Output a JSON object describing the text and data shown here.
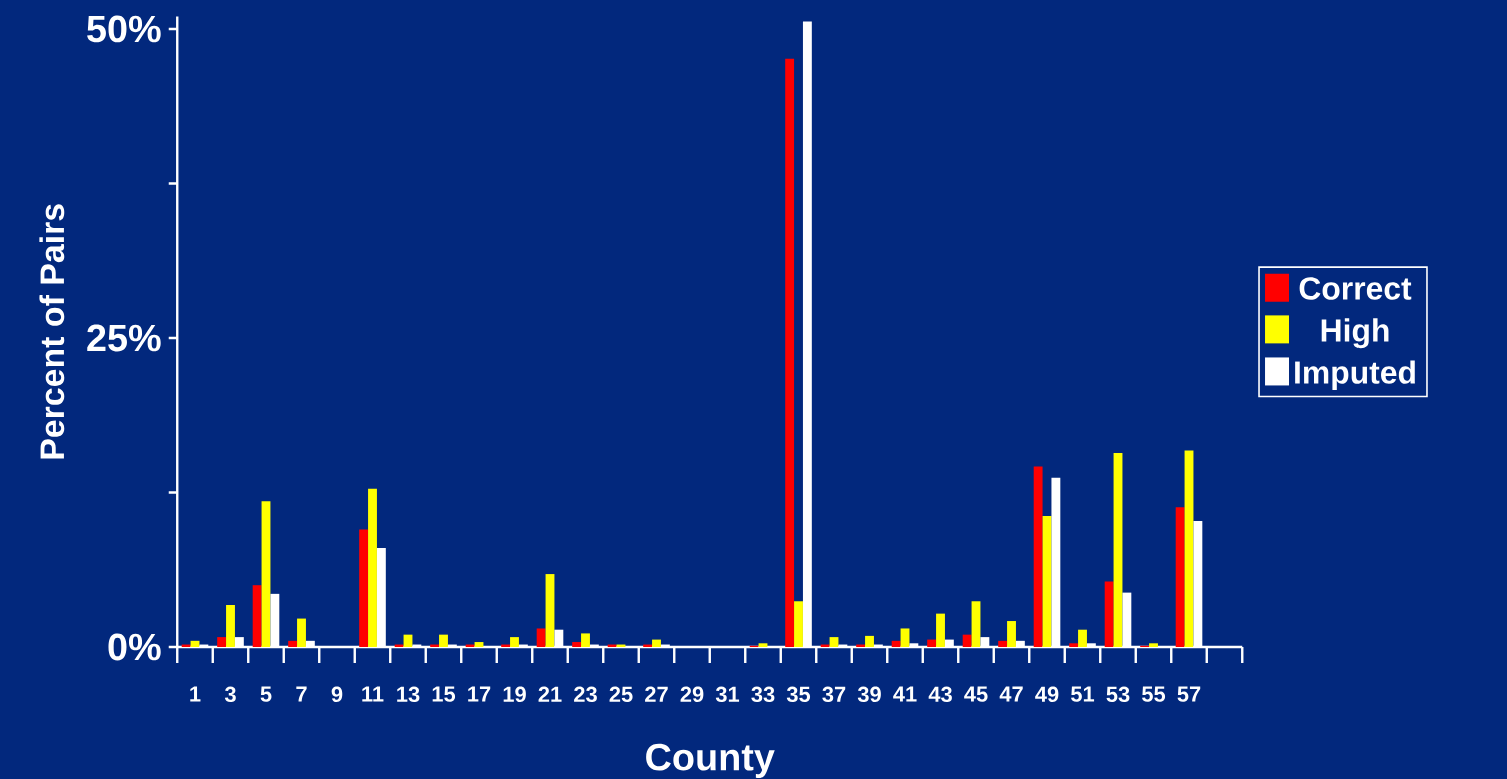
{
  "chart_data": {
    "type": "bar",
    "xlabel": "County",
    "ylabel": "Percent of Pairs",
    "categories": [
      "1",
      "3",
      "5",
      "7",
      "9",
      "11",
      "13",
      "15",
      "17",
      "19",
      "21",
      "23",
      "25",
      "27",
      "29",
      "31",
      "33",
      "35",
      "37",
      "39",
      "41",
      "43",
      "45",
      "47",
      "49",
      "51",
      "53",
      "55",
      "57",
      null
    ],
    "series": [
      {
        "name": "Correct",
        "color": "#ff0000",
        "values": [
          0.2,
          0.8,
          5.0,
          0.5,
          0,
          9.5,
          0.2,
          0.2,
          0.2,
          0.2,
          1.5,
          0.4,
          0.2,
          0.2,
          0,
          0,
          0.1,
          47.6,
          0.2,
          0.2,
          0.5,
          0.6,
          1.0,
          0.5,
          14.6,
          0.3,
          5.3,
          0.1,
          11.3,
          0
        ]
      },
      {
        "name": "High",
        "color": "#ffff00",
        "values": [
          0.5,
          3.4,
          11.8,
          2.3,
          0,
          12.8,
          1.0,
          1.0,
          0.4,
          0.8,
          5.9,
          1.1,
          0.2,
          0.6,
          0,
          0,
          0.3,
          3.7,
          0.8,
          0.9,
          1.5,
          2.7,
          3.7,
          2.1,
          10.6,
          1.4,
          15.7,
          0.3,
          15.9,
          0
        ]
      },
      {
        "name": "Imputed",
        "color": "#ffffff",
        "values": [
          0.2,
          0.8,
          4.3,
          0.5,
          0,
          8.0,
          0.2,
          0.2,
          0,
          0.2,
          1.4,
          0.2,
          0,
          0.2,
          0,
          0,
          0,
          50.6,
          0.2,
          0.2,
          0.3,
          0.6,
          0.8,
          0.5,
          13.7,
          0.3,
          4.4,
          0,
          10.2,
          0
        ]
      }
    ],
    "ylim": [
      0,
      51
    ],
    "yticks": [
      {
        "value": 0,
        "label": "0%"
      },
      {
        "value": 12.5,
        "label": null
      },
      {
        "value": 25,
        "label": "25%"
      },
      {
        "value": 37.5,
        "label": null
      },
      {
        "value": 50,
        "label": "50%"
      }
    ],
    "legend": "right"
  }
}
